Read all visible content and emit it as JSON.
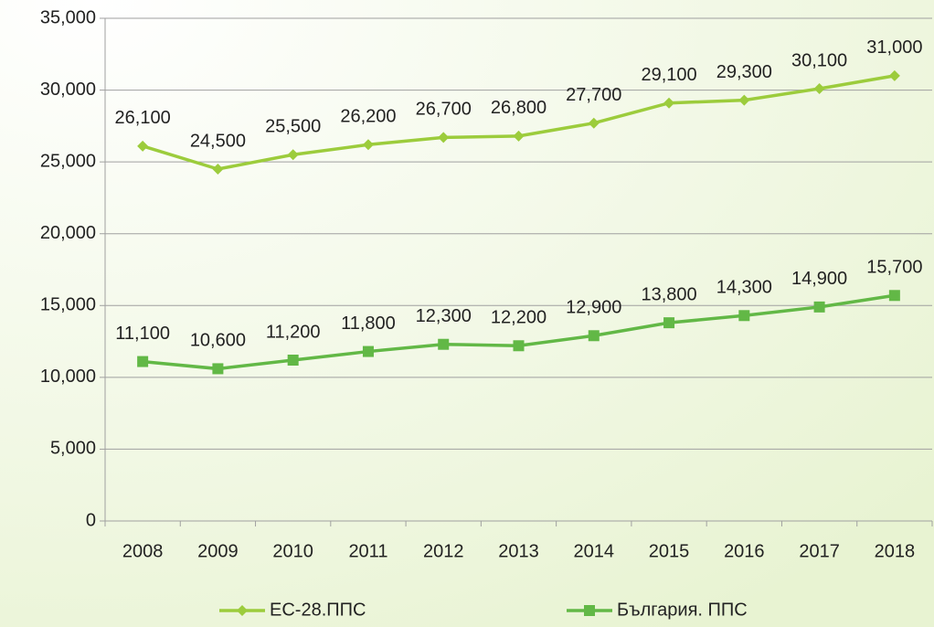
{
  "chart_data": {
    "type": "line",
    "categories": [
      "2008",
      "2009",
      "2010",
      "2011",
      "2012",
      "2013",
      "2014",
      "2015",
      "2016",
      "2017",
      "2018"
    ],
    "series": [
      {
        "name": "ЕС-28.ППС",
        "color": "#9ccc3c",
        "marker": "diamond",
        "values": [
          26100,
          24500,
          25500,
          26200,
          26700,
          26800,
          27700,
          29100,
          29300,
          30100,
          31000
        ],
        "value_labels": [
          "26,100",
          "24,500",
          "25,500",
          "26,200",
          "26,700",
          "26,800",
          "27,700",
          "29,100",
          "29,300",
          "30,100",
          "31,000"
        ]
      },
      {
        "name": "България. ППС",
        "color": "#62b846",
        "marker": "square",
        "values": [
          11100,
          10600,
          11200,
          11800,
          12300,
          12200,
          12900,
          13800,
          14300,
          14900,
          15700
        ],
        "value_labels": [
          "11,100",
          "10,600",
          "11,200",
          "11,800",
          "12,300",
          "12,200",
          "12,900",
          "13,800",
          "14,300",
          "14,900",
          "15,700"
        ]
      }
    ],
    "ylim": [
      0,
      35000
    ],
    "yticks": [
      0,
      {
        "value": 5000,
        "label": "5,000"
      },
      {
        "value": 10000,
        "label": "10,000"
      },
      {
        "value": 15000,
        "label": "15,000"
      },
      {
        "value": 20000,
        "label": "20,000"
      },
      {
        "value": 25000,
        "label": "25,000"
      },
      {
        "value": 30000,
        "label": "30,000"
      },
      {
        "value": 35000,
        "label": "35,000"
      }
    ],
    "grid": true,
    "legend": "bottom"
  }
}
